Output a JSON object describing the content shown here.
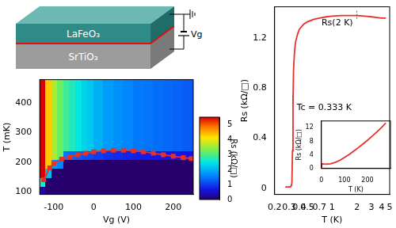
{
  "diagram": {
    "top_layer": "LaFeO₃",
    "substrate": "SrTiO₃",
    "gate_label": "Vg"
  },
  "chart_data": [
    {
      "type": "heatmap",
      "x_label": "Vg (V)",
      "y_label": "T (mK)",
      "xlim": [
        -135,
        250
      ],
      "ylim": [
        90,
        480
      ],
      "xticks": [
        -100,
        0,
        100,
        200
      ],
      "yticks": [
        100,
        200,
        300,
        400
      ],
      "grid": false,
      "x_edges": [
        -135,
        -120,
        -105,
        -90,
        -75,
        -60,
        -45,
        -30,
        -15,
        0,
        25,
        50,
        75,
        100,
        125,
        150,
        175,
        200,
        225,
        250
      ],
      "y_edges": [
        90,
        120,
        150,
        180,
        210,
        240,
        270,
        300,
        330,
        360,
        390,
        420,
        450,
        480
      ],
      "cells": [
        [
          0.3,
          0,
          0,
          0,
          0,
          0,
          0,
          0,
          0,
          0,
          0,
          0,
          0,
          0,
          0,
          0,
          0,
          0,
          0
        ],
        [
          2.7,
          0,
          0,
          0,
          0,
          0,
          0,
          0,
          0,
          0,
          0,
          0,
          0,
          0,
          0,
          0,
          0,
          0,
          0
        ],
        [
          5.5,
          2.1,
          0,
          0,
          0,
          0,
          0,
          0,
          0,
          0,
          0,
          0,
          0,
          0,
          0,
          0,
          0,
          0,
          0
        ],
        [
          5.5,
          4.3,
          1.8,
          1.6,
          0,
          0,
          0,
          0,
          0,
          0,
          0,
          0,
          0,
          0,
          0,
          0,
          0,
          0,
          0
        ],
        [
          5.5,
          4.3,
          3.6,
          3.2,
          1.45,
          1.35,
          1.25,
          1.15,
          1.1,
          1.0,
          0.9,
          0.85,
          0.8,
          0.75,
          0.72,
          0.7,
          0.68,
          0.65,
          0.62
        ],
        [
          5.5,
          4.3,
          3.6,
          3.2,
          2.9,
          2.7,
          2.5,
          2.3,
          2.2,
          2.0,
          1.8,
          1.7,
          1.6,
          1.5,
          1.45,
          1.4,
          1.35,
          1.3,
          1.25
        ],
        [
          5.5,
          4.3,
          3.6,
          3.2,
          2.9,
          2.7,
          2.5,
          2.3,
          2.2,
          2.0,
          1.8,
          1.7,
          1.6,
          1.5,
          1.45,
          1.4,
          1.35,
          1.3,
          1.25
        ],
        [
          5.5,
          4.3,
          3.6,
          3.2,
          2.9,
          2.7,
          2.5,
          2.3,
          2.2,
          2.0,
          1.8,
          1.7,
          1.6,
          1.5,
          1.45,
          1.4,
          1.35,
          1.3,
          1.25
        ],
        [
          5.5,
          4.3,
          3.6,
          3.2,
          2.9,
          2.7,
          2.5,
          2.3,
          2.2,
          2.0,
          1.8,
          1.7,
          1.6,
          1.5,
          1.45,
          1.4,
          1.35,
          1.3,
          1.25
        ],
        [
          5.5,
          4.3,
          3.6,
          3.2,
          2.9,
          2.7,
          2.5,
          2.3,
          2.2,
          2.0,
          1.8,
          1.7,
          1.6,
          1.5,
          1.45,
          1.4,
          1.35,
          1.3,
          1.25
        ],
        [
          5.5,
          4.3,
          3.6,
          3.2,
          2.9,
          2.7,
          2.5,
          2.3,
          2.2,
          2.0,
          1.8,
          1.7,
          1.6,
          1.5,
          1.45,
          1.4,
          1.35,
          1.3,
          1.25
        ],
        [
          5.5,
          4.3,
          3.6,
          3.2,
          2.9,
          2.7,
          2.5,
          2.3,
          2.2,
          2.0,
          1.8,
          1.7,
          1.6,
          1.5,
          1.45,
          1.4,
          1.35,
          1.3,
          1.25
        ],
        [
          5.5,
          4.3,
          3.6,
          3.2,
          2.9,
          2.7,
          2.5,
          2.3,
          2.2,
          2.0,
          1.8,
          1.7,
          1.6,
          1.5,
          1.45,
          1.4,
          1.35,
          1.3,
          1.25
        ]
      ],
      "colorbar": {
        "label": "Rs (kΩ/□)",
        "range": [
          0,
          5.5
        ],
        "ticks": [
          0,
          1,
          2,
          3,
          4,
          5
        ]
      },
      "series": [
        {
          "type": "line",
          "color": "#e8302a",
          "marker": "square",
          "line_style": "solid",
          "x": [
            -125,
            -110,
            -100,
            -80,
            -60,
            -40,
            -20,
            0,
            25,
            50,
            75,
            100,
            125,
            150,
            175,
            200,
            225,
            245
          ],
          "values": [
            140,
            180,
            195,
            210,
            218,
            225,
            230,
            235,
            238,
            240,
            240,
            238,
            235,
            230,
            225,
            220,
            215,
            212
          ]
        }
      ]
    },
    {
      "type": "line",
      "x_label": "T (K)",
      "y_label": "Rs (kΩ/□)",
      "log": "x",
      "xlim": [
        0.2,
        5
      ],
      "ylim": [
        -0.05,
        1.45
      ],
      "xticks": [
        0.2,
        0.3,
        0.4,
        0.5,
        0.7,
        1,
        2,
        3,
        4,
        5
      ],
      "yticks": [
        0,
        0.4,
        0.8,
        1.2
      ],
      "grid": false,
      "series": [
        {
          "color": "#e8302a",
          "line_style": "solid",
          "x": [
            0.27,
            0.29,
            0.31,
            0.32,
            0.325,
            0.33,
            0.335,
            0.34,
            0.35,
            0.36,
            0.38,
            0.4,
            0.45,
            0.5,
            0.6,
            0.7,
            0.85,
            1,
            1.3,
            1.6,
            2,
            2.5,
            3,
            3.5,
            4,
            4.5
          ],
          "values": [
            0.01,
            0.01,
            0.01,
            0.02,
            0.05,
            0.3,
            0.7,
            0.95,
            1.1,
            1.17,
            1.23,
            1.27,
            1.31,
            1.33,
            1.35,
            1.36,
            1.37,
            1.375,
            1.38,
            1.38,
            1.38,
            1.375,
            1.37,
            1.365,
            1.36,
            1.36
          ]
        }
      ],
      "annotations": [
        {
          "text": "Tc = 0.333 K",
          "x": 0.333,
          "y": 0.7
        },
        {
          "text": "Rs(2 K)",
          "x": 2,
          "y": 1.38
        }
      ]
    },
    {
      "type": "line",
      "x_label": "T (K)",
      "y_label": "Rs (kΩ/□)",
      "xlim": [
        0,
        300
      ],
      "ylim": [
        0,
        14
      ],
      "xticks": [
        0,
        100,
        200
      ],
      "yticks": [
        0,
        4,
        8,
        12
      ],
      "grid": false,
      "series": [
        {
          "color": "#e8302a",
          "line_style": "solid",
          "x": [
            0.3,
            2,
            10,
            20,
            40,
            60,
            80,
            100,
            120,
            140,
            160,
            180,
            200,
            220,
            240,
            260,
            280
          ],
          "values": [
            0,
            1.4,
            1.3,
            1.25,
            1.4,
            1.8,
            2.4,
            3.2,
            4.1,
            5.1,
            6.1,
            7.2,
            8.3,
            9.5,
            10.7,
            12,
            13.4
          ]
        }
      ]
    }
  ]
}
